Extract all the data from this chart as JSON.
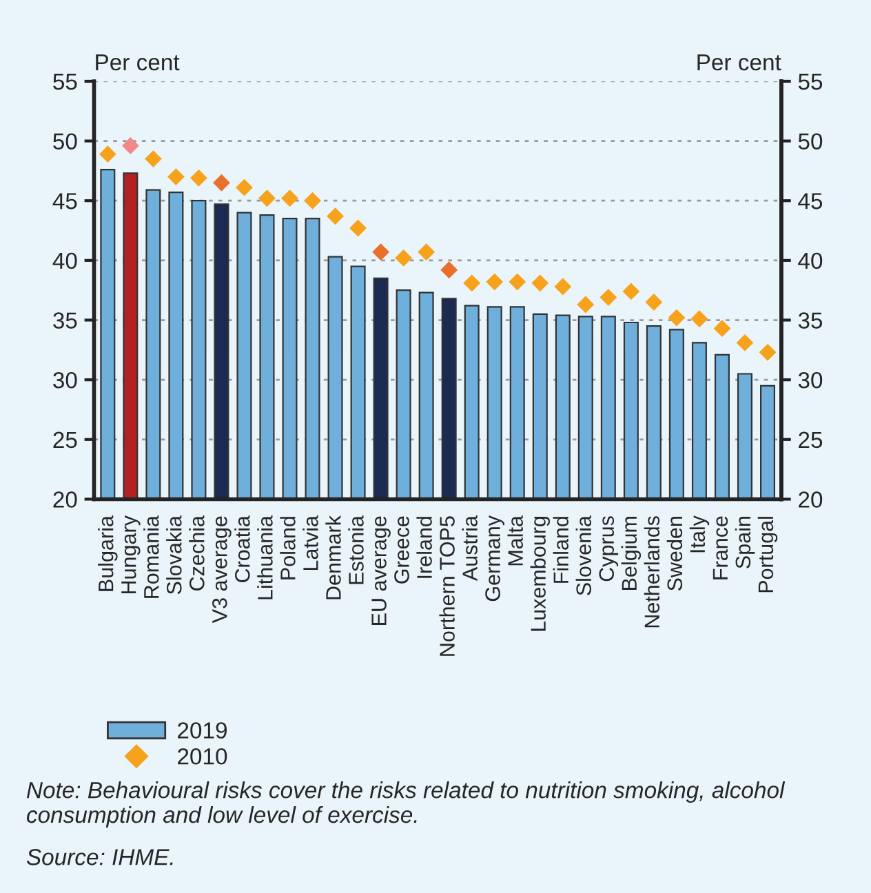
{
  "chart_data": {
    "type": "bar",
    "categories": [
      "Bulgaria",
      "Hungary",
      "Romania",
      "Slovakia",
      "Czechia",
      "V3 average",
      "Croatia",
      "Lithuania",
      "Poland",
      "Latvia",
      "Denmark",
      "Estonia",
      "EU average",
      "Greece",
      "Ireland",
      "Northern TOP5",
      "Austria",
      "Germany",
      "Malta",
      "Luxembourg",
      "Finland",
      "Slovenia",
      "Cyprus",
      "Belgium",
      "Netherlands",
      "Sweden",
      "Italy",
      "France",
      "Spain",
      "Portugal"
    ],
    "series": [
      {
        "name": "2019",
        "color": "#6fafdb",
        "colors": [
          "#6fafdb",
          "#b22222",
          "#6fafdb",
          "#6fafdb",
          "#6fafdb",
          "#1b2a52",
          "#6fafdb",
          "#6fafdb",
          "#6fafdb",
          "#6fafdb",
          "#6fafdb",
          "#6fafdb",
          "#1b2a52",
          "#6fafdb",
          "#6fafdb",
          "#1b2a52",
          "#6fafdb",
          "#6fafdb",
          "#6fafdb",
          "#6fafdb",
          "#6fafdb",
          "#6fafdb",
          "#6fafdb",
          "#6fafdb",
          "#6fafdb",
          "#6fafdb",
          "#6fafdb",
          "#6fafdb",
          "#6fafdb",
          "#6fafdb"
        ],
        "values": [
          47.6,
          47.3,
          45.9,
          45.7,
          45.0,
          44.7,
          44.0,
          43.8,
          43.5,
          43.5,
          40.3,
          39.5,
          38.5,
          37.5,
          37.3,
          36.8,
          36.2,
          36.1,
          36.1,
          35.5,
          35.4,
          35.3,
          35.3,
          34.8,
          34.5,
          34.2,
          33.1,
          32.1,
          30.5,
          29.5
        ]
      },
      {
        "name": "2010",
        "type": "scatter",
        "color": "#f7a21b",
        "colors": [
          "#f7a21b",
          "#f08a8a",
          "#f7a21b",
          "#f7a21b",
          "#f7a21b",
          "#e8702a",
          "#f7a21b",
          "#f7a21b",
          "#f7a21b",
          "#f7a21b",
          "#f7a21b",
          "#f7a21b",
          "#e8702a",
          "#f7a21b",
          "#f7a21b",
          "#e8702a",
          "#f7a21b",
          "#f7a21b",
          "#f7a21b",
          "#f7a21b",
          "#f7a21b",
          "#f7a21b",
          "#f7a21b",
          "#f7a21b",
          "#f7a21b",
          "#f7a21b",
          "#f7a21b",
          "#f7a21b",
          "#f7a21b",
          "#f7a21b"
        ],
        "values": [
          48.9,
          49.6,
          48.5,
          47.0,
          46.9,
          46.5,
          46.1,
          45.2,
          45.2,
          45.0,
          43.7,
          42.7,
          40.7,
          40.2,
          40.7,
          39.2,
          38.1,
          38.2,
          38.2,
          38.1,
          37.8,
          36.3,
          36.9,
          37.4,
          36.5,
          35.2,
          35.1,
          34.3,
          33.1,
          32.3
        ]
      }
    ],
    "ylabel": "Per cent",
    "y2label": "Per cent",
    "ylim": [
      20,
      55
    ],
    "yticks": [
      20,
      25,
      30,
      35,
      40,
      45,
      50,
      55
    ],
    "y2lim": [
      20,
      55
    ],
    "y2ticks": [
      20,
      25,
      30,
      35,
      40,
      45,
      50,
      55
    ],
    "grid": "y",
    "legend": "bottom",
    "marker": "diamond",
    "annotations": [
      "Note: Behavioural risks cover the risks related to nutrition smoking, alcohol consumption and low level of exercise.",
      "Source: IHME."
    ]
  }
}
